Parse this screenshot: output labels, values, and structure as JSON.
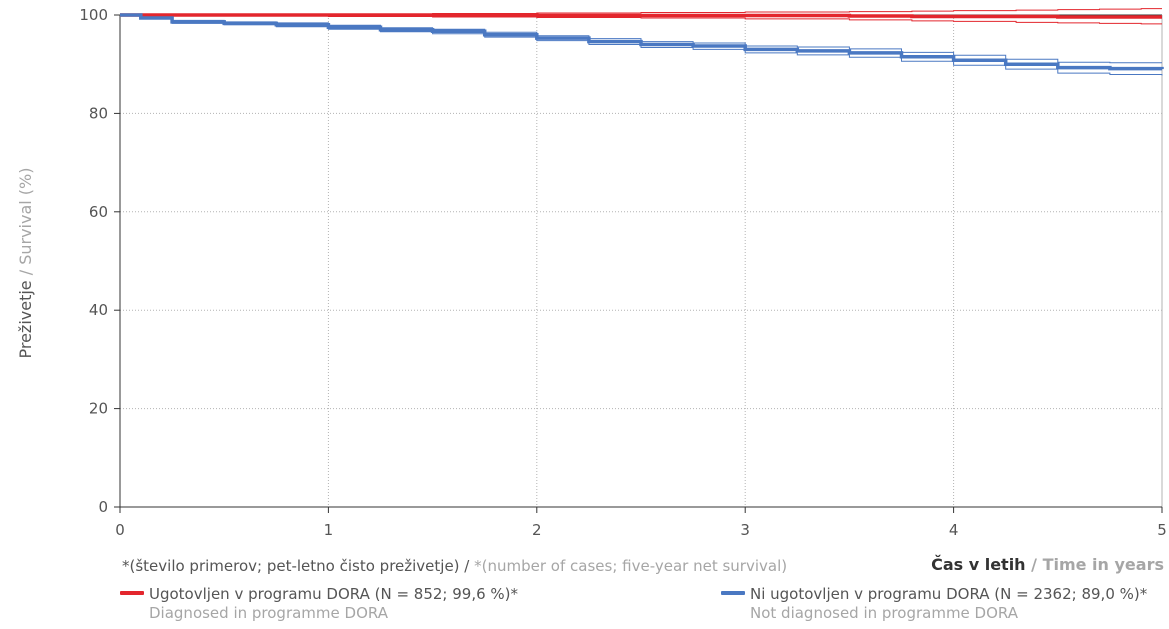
{
  "chart_data": {
    "type": "line",
    "xlabel": {
      "sl": "Čas v letih",
      "en": " / Time in years"
    },
    "ylabel": {
      "sl": "Preživetje",
      "en": " / Survival (%)"
    },
    "xlim": [
      0,
      5
    ],
    "ylim": [
      0,
      100
    ],
    "x_ticks": [
      0,
      1,
      2,
      3,
      4,
      5
    ],
    "y_ticks": [
      0,
      20,
      40,
      60,
      80,
      100
    ],
    "grid": true,
    "legend_position": "bottom",
    "footnote": {
      "sl": "*(število primerov; pet-letno čisto preživetje) / ",
      "en": "*(number of cases; five-year net survival)"
    },
    "series": [
      {
        "name": "Ugotovljen v programu DORA (N = 852; 99,6 %)*",
        "name_en": "Diagnosed in programme DORA",
        "color": "#e3262d",
        "x": [
          0,
          0.3,
          0.5,
          1.0,
          1.5,
          2.0,
          2.5,
          3.0,
          3.5,
          3.8,
          4.0,
          4.3,
          4.5,
          4.7,
          4.9,
          5.0
        ],
        "y": [
          100,
          100,
          100,
          100,
          100,
          99.9,
          99.9,
          99.9,
          99.8,
          99.7,
          99.7,
          99.7,
          99.6,
          99.6,
          99.6,
          99.6
        ],
        "ci_upper": [
          100,
          100,
          100,
          100.2,
          100.3,
          100.4,
          100.5,
          100.6,
          100.7,
          100.8,
          100.9,
          101.0,
          101.1,
          101.2,
          101.3,
          101.3
        ],
        "ci_lower": [
          100,
          100,
          99.8,
          99.7,
          99.6,
          99.5,
          99.4,
          99.2,
          99.0,
          98.8,
          98.7,
          98.5,
          98.4,
          98.3,
          98.2,
          98.2
        ]
      },
      {
        "name": "Ni ugotovljen v programu DORA (N = 2362; 89,0 %)*",
        "name_en": "Not diagnosed in programme DORA",
        "color": "#4a78c2",
        "x": [
          0,
          0.1,
          0.25,
          0.5,
          0.75,
          1.0,
          1.25,
          1.5,
          1.75,
          2.0,
          2.25,
          2.5,
          2.75,
          3.0,
          3.25,
          3.5,
          3.75,
          4.0,
          4.25,
          4.5,
          4.75,
          5.0
        ],
        "y": [
          100,
          99.4,
          98.6,
          98.3,
          98.0,
          97.5,
          97.0,
          96.7,
          96.0,
          95.3,
          94.6,
          94.0,
          93.7,
          93.0,
          92.7,
          92.3,
          91.5,
          90.8,
          90.0,
          89.3,
          89.1,
          89.0
        ],
        "ci_upper": [
          100,
          99.6,
          98.9,
          98.6,
          98.4,
          97.9,
          97.4,
          97.1,
          96.5,
          95.8,
          95.2,
          94.6,
          94.3,
          93.7,
          93.5,
          93.1,
          92.4,
          91.8,
          91.0,
          90.4,
          90.3,
          90.3
        ],
        "ci_lower": [
          100,
          99.2,
          98.3,
          98.0,
          97.6,
          97.1,
          96.6,
          96.2,
          95.5,
          94.8,
          94.0,
          93.4,
          93.0,
          92.3,
          91.9,
          91.4,
          90.6,
          89.8,
          89.0,
          88.2,
          87.9,
          87.7
        ]
      }
    ]
  }
}
